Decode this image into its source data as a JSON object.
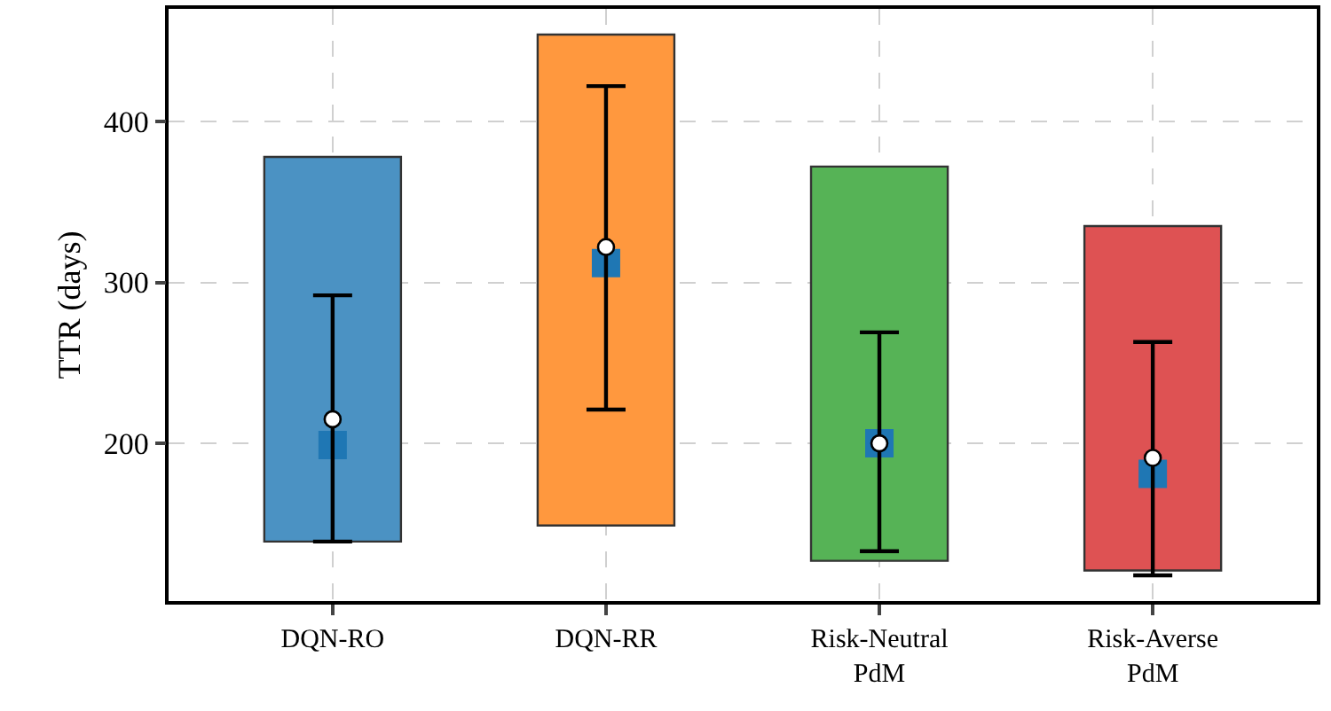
{
  "chart_data": {
    "type": "bar",
    "ylabel": "TTR (days)",
    "categories": [
      "DQN-RO",
      "DQN-RR",
      "Risk-Neutral\nPdM",
      "Risk-Averse\nPdM"
    ],
    "ylim": [
      102,
      470
    ],
    "yticks": [
      200,
      300,
      400
    ],
    "grid": true,
    "series": [
      {
        "base": [
          139,
          149,
          127,
          121
        ],
        "values": [
          239,
          305,
          245,
          214
        ],
        "colors": [
          "#4b92c3",
          "#ff983e",
          "#56b356",
          "#de5253"
        ]
      },
      {
        "type": "scatter",
        "marker": "circle",
        "color": "#ffffff",
        "values": [
          215,
          322,
          200,
          191
        ],
        "errors": [
          [
            139,
            292
          ],
          [
            221,
            422
          ],
          [
            133,
            269
          ],
          [
            118,
            263
          ]
        ]
      },
      {
        "type": "scatter",
        "marker": "square",
        "color": "#1f77b4",
        "values": [
          199,
          312,
          200,
          181
        ]
      }
    ]
  }
}
